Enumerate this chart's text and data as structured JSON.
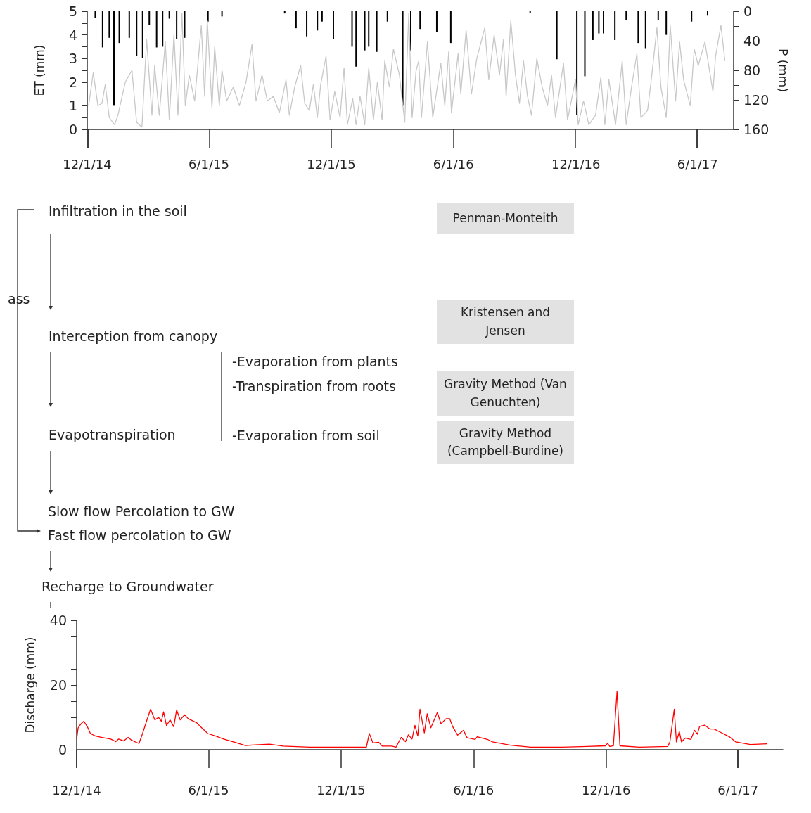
{
  "chart_data": [
    {
      "type": "line",
      "ylabel": "ET (mm)",
      "y2label": "P (mm)",
      "xlim": [
        "2014-12-01",
        "2017-07-25"
      ],
      "xticks": [
        {
          "value": "2014-12-01",
          "label": "12/1/14"
        },
        {
          "value": "2015-06-01",
          "label": "6/1/15"
        },
        {
          "value": "2015-12-01",
          "label": "12/1/15"
        },
        {
          "value": "2016-06-01",
          "label": "6/1/16"
        },
        {
          "value": "2016-12-01",
          "label": "12/1/16"
        },
        {
          "value": "2017-06-01",
          "label": "6/1/17"
        }
      ],
      "ylim": [
        0,
        5
      ],
      "yticks": [
        0,
        {
          "value": 0.5,
          "label": null
        },
        1,
        {
          "value": 1.5,
          "label": null
        },
        2,
        {
          "value": 2.5,
          "label": null
        },
        3,
        {
          "value": 3.5,
          "label": null
        },
        4,
        {
          "value": 4.5,
          "label": null
        },
        5
      ],
      "y2lim": [
        160,
        0
      ],
      "y2ticks": [
        0,
        {
          "value": 20,
          "label": null
        },
        40,
        {
          "value": 60,
          "label": null
        },
        80,
        {
          "value": 100,
          "label": null
        },
        120,
        {
          "value": 140,
          "label": null
        },
        160
      ],
      "marker": "none",
      "grid": false,
      "series": [
        {
          "type": "line",
          "color": "#c8c8c8",
          "x": [
            "2014-12-02",
            "2014-12-09",
            "2014-12-16",
            "2014-12-22",
            "2014-12-27",
            "2015-01-02",
            "2015-01-10",
            "2015-01-15",
            "2015-01-26",
            "2015-02-05",
            "2015-02-12",
            "2015-02-20",
            "2015-02-27",
            "2015-03-07",
            "2015-03-11",
            "2015-03-18",
            "2015-03-27",
            "2015-04-02",
            "2015-04-09",
            "2015-04-15",
            "2015-04-21",
            "2015-04-26",
            "2015-05-02",
            "2015-05-10",
            "2015-05-20",
            "2015-05-25",
            "2015-05-29",
            "2015-06-05",
            "2015-06-09",
            "2015-06-16",
            "2015-06-20",
            "2015-06-27",
            "2015-07-07",
            "2015-07-16",
            "2015-07-26",
            "2015-08-04",
            "2015-08-10",
            "2015-08-19",
            "2015-08-27",
            "2015-09-05",
            "2015-09-14",
            "2015-09-24",
            "2015-09-29",
            "2015-10-07",
            "2015-10-16",
            "2015-10-22",
            "2015-10-29",
            "2015-11-04",
            "2015-11-10",
            "2015-11-15",
            "2015-11-23",
            "2015-11-29",
            "2015-12-06",
            "2015-12-14",
            "2015-12-20",
            "2015-12-25",
            "2016-01-02",
            "2016-01-07",
            "2016-01-13",
            "2016-01-20",
            "2016-01-26",
            "2016-02-02",
            "2016-02-08",
            "2016-02-15",
            "2016-02-19",
            "2016-02-26",
            "2016-03-03",
            "2016-03-12",
            "2016-03-20",
            "2016-03-26",
            "2016-03-31",
            "2016-04-06",
            "2016-04-10",
            "2016-04-14",
            "2016-04-23",
            "2016-05-01",
            "2016-05-13",
            "2016-05-19",
            "2016-05-25",
            "2016-05-29",
            "2016-06-08",
            "2016-06-12",
            "2016-06-20",
            "2016-06-28",
            "2016-07-06",
            "2016-07-18",
            "2016-07-24",
            "2016-08-01",
            "2016-08-09",
            "2016-08-15",
            "2016-08-19",
            "2016-08-26",
            "2016-09-02",
            "2016-09-08",
            "2016-09-14",
            "2016-09-20",
            "2016-09-26",
            "2016-10-04",
            "2016-10-12",
            "2016-10-20",
            "2016-10-26",
            "2016-11-01",
            "2016-11-13",
            "2016-11-19",
            "2016-12-01",
            "2016-12-05",
            "2016-12-13",
            "2016-12-21",
            "2016-12-31",
            "2017-01-08",
            "2017-01-14",
            "2017-01-20",
            "2017-01-30",
            "2017-02-09",
            "2017-02-15",
            "2017-02-23",
            "2017-03-03",
            "2017-03-09",
            "2017-03-19",
            "2017-03-25",
            "2017-04-02",
            "2017-04-08",
            "2017-04-16",
            "2017-04-22",
            "2017-04-30",
            "2017-05-06",
            "2017-05-12",
            "2017-05-22",
            "2017-05-28",
            "2017-06-03",
            "2017-06-13",
            "2017-06-25",
            "2017-06-29",
            "2017-07-07",
            "2017-07-13"
          ],
          "values": [
            1.0,
            2.4,
            1.0,
            1.1,
            1.9,
            0.5,
            0.2,
            0.6,
            2.0,
            2.5,
            0.3,
            0.1,
            3.8,
            0.6,
            2.7,
            0.6,
            3.7,
            0.4,
            4.0,
            0.6,
            4.9,
            1.0,
            2.3,
            1.2,
            4.4,
            1.4,
            4.6,
            0.9,
            3.5,
            1.0,
            2.5,
            1.2,
            1.8,
            1.0,
            2.0,
            3.6,
            1.2,
            2.3,
            1.2,
            1.4,
            0.7,
            2.1,
            0.6,
            1.8,
            2.7,
            1.1,
            0.8,
            1.9,
            0.5,
            1.9,
            3.1,
            0.4,
            1.6,
            0.5,
            2.6,
            0.2,
            1.3,
            0.2,
            1.4,
            0.2,
            2.6,
            0.4,
            2.0,
            0.4,
            2.9,
            1.8,
            3.4,
            2.3,
            0.3,
            4.9,
            0.5,
            2.5,
            2.9,
            0.5,
            3.7,
            0.5,
            2.8,
            1.0,
            3.3,
            0.7,
            3.2,
            1.5,
            4.2,
            1.5,
            3.0,
            4.3,
            2.1,
            4.0,
            2.3,
            3.8,
            1.4,
            4.6,
            2.3,
            1.1,
            2.9,
            1.4,
            0.6,
            3.0,
            1.8,
            1.0,
            2.3,
            0.5,
            2.8,
            0.4,
            2.1,
            0.2,
            1.2,
            0.2,
            0.6,
            2.2,
            0.2,
            2.1,
            0.2,
            2.9,
            0.2,
            1.8,
            3.2,
            0.5,
            0.8,
            2.2,
            4.3,
            1.8,
            0.5,
            4.4,
            1.2,
            3.7,
            2.1,
            1.0,
            3.4,
            2.7,
            3.7,
            1.6,
            3.1,
            4.4,
            2.9
          ]
        },
        {
          "type": "bar",
          "axis": "y2",
          "color": "#000000",
          "x": [
            "2014-12-12",
            "2014-12-23",
            "2015-01-02",
            "2015-01-09",
            "2015-01-17",
            "2015-02-01",
            "2015-02-12",
            "2015-02-21",
            "2015-03-03",
            "2015-03-14",
            "2015-03-23",
            "2015-04-02",
            "2015-04-13",
            "2015-04-25",
            "2015-05-30",
            "2015-06-20",
            "2015-09-22",
            "2015-10-09",
            "2015-10-25",
            "2015-11-10",
            "2015-11-17",
            "2015-12-04",
            "2016-01-01",
            "2016-01-07",
            "2016-01-20",
            "2016-01-26",
            "2016-02-07",
            "2016-02-23",
            "2016-03-17",
            "2016-03-29",
            "2016-04-12",
            "2016-05-07",
            "2016-05-28",
            "2016-09-24",
            "2016-11-03",
            "2016-12-03",
            "2016-12-15",
            "2016-12-27",
            "2017-01-05",
            "2017-01-12",
            "2017-01-29",
            "2017-02-15",
            "2017-03-05",
            "2017-03-16",
            "2017-04-04",
            "2017-04-16",
            "2017-05-24",
            "2017-06-17"
          ],
          "values": [
            9,
            49,
            36,
            128,
            43,
            36,
            60,
            63,
            19,
            49,
            48,
            10,
            38,
            36,
            14,
            7,
            3,
            23,
            34,
            26,
            14,
            38,
            48,
            75,
            53,
            48,
            55,
            14,
            128,
            53,
            24,
            28,
            43,
            2,
            65,
            140,
            88,
            39,
            30,
            30,
            39,
            12,
            43,
            50,
            12,
            32,
            14,
            6
          ]
        }
      ]
    },
    {
      "type": "other",
      "annotations": [
        "Infiltration in the soil",
        "ass",
        "Interception from canopy",
        "-Evaporation from plants",
        "-Transpiration from roots",
        "Evapotranspiration",
        "-Evaporation from soil",
        "Slow flow Percolation to GW",
        "Fast flow percolation to GW",
        "Recharge to Groundwater",
        "Penman-Monteith",
        "Kristensen and Jensen",
        "Gravity Method (Van Genuchten)",
        "Gravity Method (Campbell-Burdine)"
      ]
    },
    {
      "type": "line",
      "ylabel": "Discharge (mm)",
      "xlim": [
        "2014-12-01",
        "2017-08-02"
      ],
      "xticks": [
        {
          "value": "2014-12-01",
          "label": "12/1/14"
        },
        {
          "value": "2015-06-01",
          "label": "6/1/15"
        },
        {
          "value": "2015-12-01",
          "label": "12/1/15"
        },
        {
          "value": "2016-06-01",
          "label": "6/1/16"
        },
        {
          "value": "2016-12-01",
          "label": "12/1/16"
        },
        {
          "value": "2017-06-01",
          "label": "6/1/17"
        }
      ],
      "ylim": [
        0,
        40
      ],
      "yticks": [
        0,
        {
          "value": 5,
          "label": null
        },
        {
          "value": 10,
          "label": null
        },
        {
          "value": 15,
          "label": null
        },
        20,
        {
          "value": 25,
          "label": null
        },
        {
          "value": 30,
          "label": null
        },
        {
          "value": 35,
          "label": null
        },
        40
      ],
      "marker": "none",
      "grid": false,
      "series": [
        {
          "color": "#ff0000",
          "x": [
            "2014-12-01",
            "2014-12-03",
            "2014-12-07",
            "2014-12-11",
            "2014-12-16",
            "2014-12-20",
            "2014-12-27",
            "2015-01-05",
            "2015-01-17",
            "2015-01-24",
            "2015-01-28",
            "2015-02-04",
            "2015-02-10",
            "2015-02-15",
            "2015-02-25",
            "2015-03-02",
            "2015-03-08",
            "2015-03-13",
            "2015-03-19",
            "2015-03-24",
            "2015-03-28",
            "2015-03-31",
            "2015-04-04",
            "2015-04-09",
            "2015-04-14",
            "2015-04-18",
            "2015-04-23",
            "2015-04-29",
            "2015-05-04",
            "2015-05-16",
            "2015-05-21",
            "2015-05-31",
            "2015-06-11",
            "2015-06-22",
            "2015-07-07",
            "2015-07-22",
            "2015-08-05",
            "2015-08-24",
            "2015-09-12",
            "2015-10-19",
            "2015-12-03",
            "2016-01-05",
            "2016-01-09",
            "2016-01-14",
            "2016-01-22",
            "2016-01-27",
            "2016-02-09",
            "2016-02-15",
            "2016-02-22",
            "2016-02-28",
            "2016-03-03",
            "2016-03-08",
            "2016-03-12",
            "2016-03-16",
            "2016-03-19",
            "2016-03-25",
            "2016-03-29",
            "2016-04-03",
            "2016-04-12",
            "2016-04-17",
            "2016-04-24",
            "2016-04-29",
            "2016-05-03",
            "2016-05-10",
            "2016-05-18",
            "2016-05-23",
            "2016-06-03",
            "2016-06-06",
            "2016-06-20",
            "2016-06-27",
            "2016-07-22",
            "2016-08-19",
            "2016-10-01",
            "2016-11-05",
            "2016-11-30",
            "2016-12-03",
            "2016-12-06",
            "2016-12-11",
            "2016-12-16",
            "2016-12-20",
            "2017-01-16",
            "2017-02-24",
            "2017-02-27",
            "2017-03-05",
            "2017-03-08",
            "2017-03-12",
            "2017-03-15",
            "2017-03-20",
            "2017-03-28",
            "2017-04-02",
            "2017-04-06",
            "2017-04-09",
            "2017-04-16",
            "2017-04-23",
            "2017-04-29",
            "2017-05-06",
            "2017-05-20",
            "2017-05-29",
            "2017-06-18",
            "2017-07-11"
          ],
          "values": [
            3.3,
            6.7,
            8.0,
            8.8,
            7.0,
            5.0,
            4.2,
            3.8,
            3.3,
            2.5,
            3.3,
            2.7,
            3.8,
            2.9,
            1.9,
            5.0,
            9.2,
            12.5,
            9.2,
            10.0,
            8.8,
            11.7,
            7.5,
            9.2,
            7.1,
            12.3,
            9.2,
            10.8,
            9.6,
            8.3,
            7.1,
            5.0,
            4.2,
            3.3,
            2.3,
            1.3,
            1.5,
            1.7,
            1.1,
            0.8,
            0.8,
            0.8,
            5.0,
            2.1,
            2.3,
            1.1,
            1.1,
            0.8,
            3.8,
            2.5,
            4.6,
            3.3,
            7.5,
            4.2,
            12.5,
            5.2,
            11.1,
            6.8,
            11.5,
            8.0,
            9.6,
            9.6,
            7.2,
            4.5,
            6.0,
            3.7,
            3.2,
            4.0,
            3.2,
            2.4,
            1.4,
            0.8,
            0.8,
            1.0,
            1.2,
            2.0,
            1.0,
            1.2,
            18.0,
            1.2,
            0.8,
            1.0,
            2.4,
            12.5,
            2.4,
            5.6,
            2.4,
            3.6,
            3.2,
            6.0,
            4.8,
            7.2,
            7.6,
            6.4,
            6.4,
            5.6,
            4.0,
            2.4,
            1.6,
            1.8
          ]
        }
      ]
    }
  ]
}
